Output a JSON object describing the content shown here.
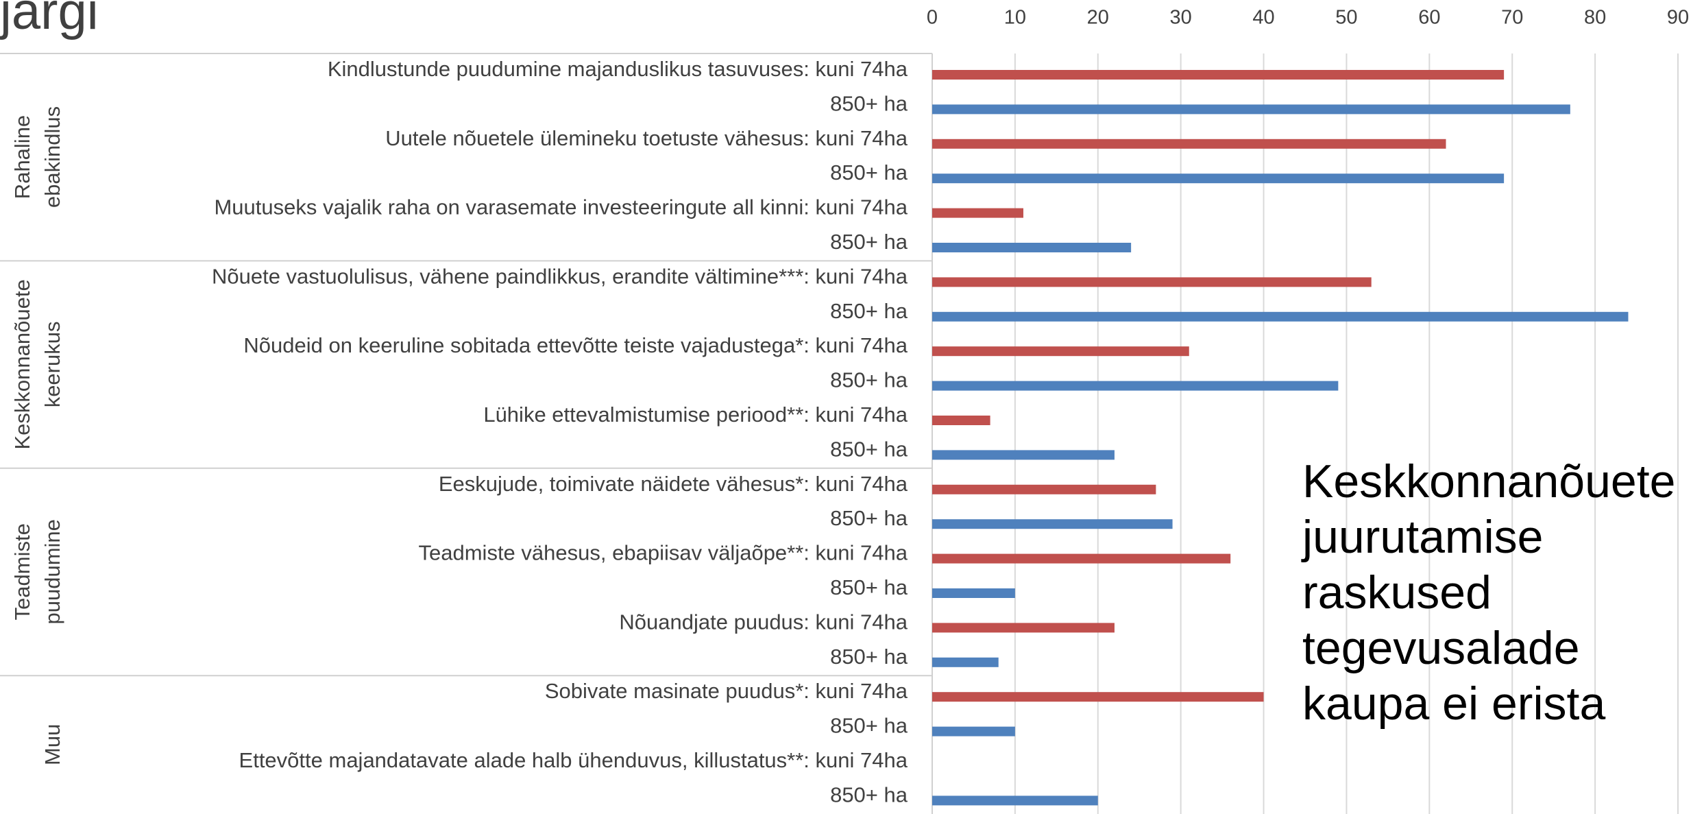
{
  "chart_data": {
    "type": "bar",
    "orientation": "horizontal",
    "title": "järgi",
    "annotation": [
      "Keskkonnanõuete",
      "juurutamise",
      "raskused",
      "tegevusalade",
      "kaupa ei erista"
    ],
    "groups": [
      {
        "label": [
          "Rahaline",
          "ebakindlus"
        ],
        "categories": [
          "Kindlustunde puudumine majanduslikus tasuvuses:",
          "Uutele nõuetele ülemineku toetuste vähesus:",
          "Muutuseks vajalik raha on varasemate investeeringute all kinni:"
        ]
      },
      {
        "label": [
          "Keskkonnanõuete",
          "keerukus"
        ],
        "categories": [
          "Nõuete vastuolulisus, vähene paindlikkus, erandite vältimine***:",
          "Nõudeid on keeruline sobitada ettevõtte teiste vajadustega*:",
          "Lühike ettevalmistumise periood**:"
        ]
      },
      {
        "label": [
          "Teadmiste",
          "puudumine"
        ],
        "categories": [
          "Eeskujude, toimivate näidete vähesus*:",
          "Teadmiste vähesus, ebapiisav väljaõpe**:",
          "Nõuandjate puudus:"
        ]
      },
      {
        "label": [
          "Muu"
        ],
        "categories": [
          "Sobivate masinate puudus*:",
          "Ettevõtte majandatavate alade halb ühenduvus, killustatus**:"
        ]
      }
    ],
    "series": [
      {
        "name": "kuni 74ha",
        "color": "#c0504d",
        "values": [
          69,
          62,
          11,
          53,
          31,
          7,
          27,
          36,
          22,
          40,
          0
        ]
      },
      {
        "name": "850+ ha",
        "color": "#4f81bd",
        "values": [
          77,
          69,
          24,
          84,
          49,
          22,
          29,
          10,
          8,
          10,
          20
        ]
      }
    ],
    "xlim": [
      0,
      90
    ],
    "xticks": [
      0,
      10,
      20,
      30,
      40,
      50,
      60,
      70,
      80,
      90
    ],
    "grid": true
  }
}
